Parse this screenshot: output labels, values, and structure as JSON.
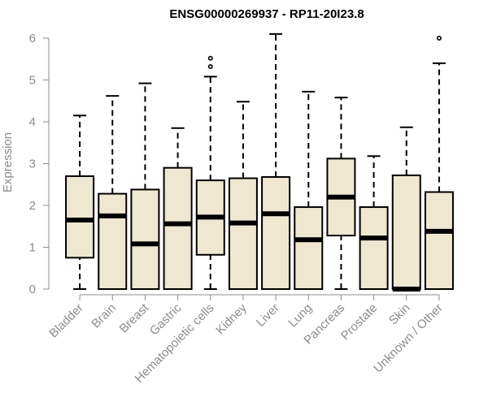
{
  "chart_data": {
    "type": "boxplot",
    "title": "ENSG00000269937 - RP11-20I23.8",
    "xlabel": "",
    "ylabel": "Expression",
    "ylim": [
      0,
      6.2
    ],
    "yticks": [
      0,
      1,
      2,
      3,
      4,
      5,
      6
    ],
    "grid": false,
    "box_fill": "#efe8d0",
    "box_stroke": "#000000",
    "axis_color": "#8c8c8c",
    "categories": [
      "Bladder",
      "Brain",
      "Breast",
      "Gastric",
      "Hematopoietic cells",
      "Kidney",
      "Liver",
      "Lung",
      "Pancreas",
      "Prostate",
      "Skin",
      "Unknown / Other"
    ],
    "boxes": [
      {
        "min": 0,
        "q1": 0.75,
        "median": 1.65,
        "q3": 2.7,
        "max": 4.15,
        "outliers": []
      },
      {
        "min": 0,
        "q1": 0,
        "median": 1.75,
        "q3": 2.28,
        "max": 4.62,
        "outliers": []
      },
      {
        "min": 0,
        "q1": 0,
        "median": 1.08,
        "q3": 2.38,
        "max": 4.92,
        "outliers": []
      },
      {
        "min": 0,
        "q1": 0,
        "median": 1.56,
        "q3": 2.9,
        "max": 3.85,
        "outliers": []
      },
      {
        "min": 0,
        "q1": 0.82,
        "median": 1.72,
        "q3": 2.6,
        "max": 5.08,
        "outliers": [
          5.32,
          5.52
        ]
      },
      {
        "min": 0,
        "q1": 0,
        "median": 1.58,
        "q3": 2.65,
        "max": 4.48,
        "outliers": []
      },
      {
        "min": 0,
        "q1": 0,
        "median": 1.8,
        "q3": 2.68,
        "max": 6.1,
        "outliers": []
      },
      {
        "min": 0,
        "q1": 0,
        "median": 1.18,
        "q3": 1.96,
        "max": 4.72,
        "outliers": []
      },
      {
        "min": 0,
        "q1": 1.28,
        "median": 2.2,
        "q3": 3.12,
        "max": 4.58,
        "outliers": []
      },
      {
        "min": 0,
        "q1": 0,
        "median": 1.22,
        "q3": 1.96,
        "max": 3.18,
        "outliers": []
      },
      {
        "min": 0,
        "q1": 0,
        "median": 0,
        "q3": 2.72,
        "max": 3.87,
        "outliers": []
      },
      {
        "min": 0,
        "q1": 0,
        "median": 1.38,
        "q3": 2.32,
        "max": 5.4,
        "outliers": [
          6.0
        ]
      }
    ]
  }
}
